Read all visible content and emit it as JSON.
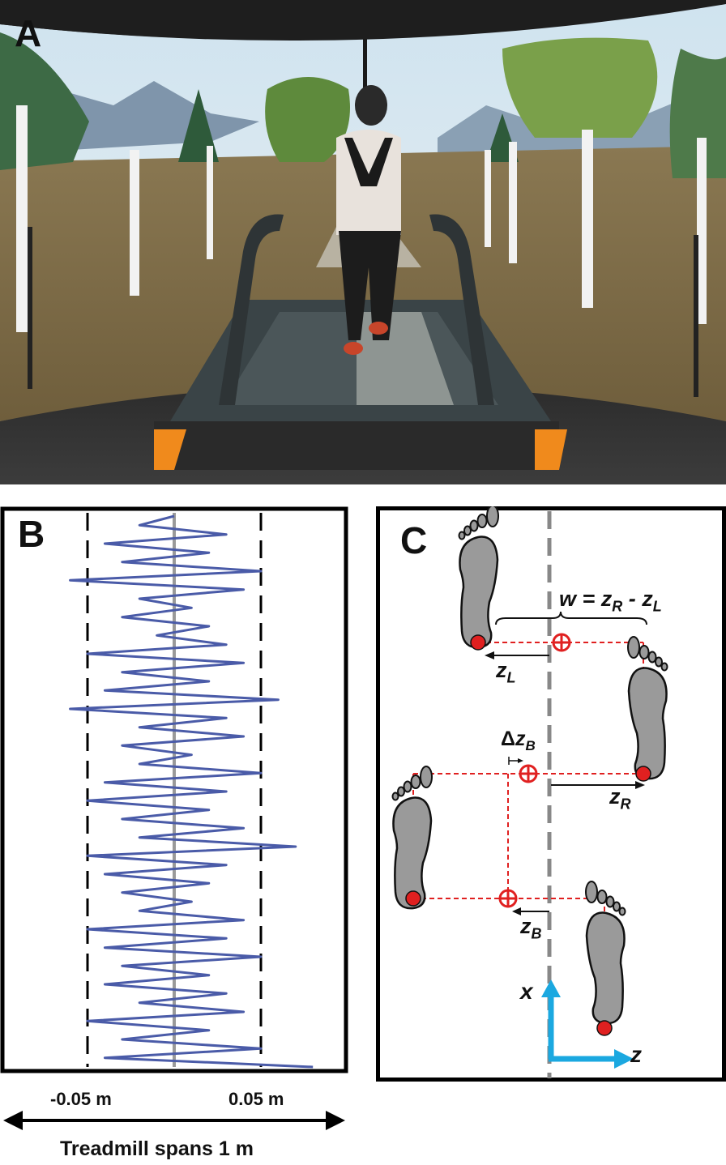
{
  "panels": {
    "a": {
      "label": "A"
    },
    "b": {
      "label": "B"
    },
    "c": {
      "label": "C"
    }
  },
  "panel_b": {
    "left_tick": "-0.05 m",
    "right_tick": "0.05 m",
    "span_label": "Treadmill spans 1 m"
  },
  "panel_c": {
    "width_eq_w": "w = z",
    "width_eq_sub_r": "R",
    "width_eq_mid": " - z",
    "width_eq_sub_l": "L",
    "zl_main": "z",
    "zl_sub": "L",
    "zr_main": "z",
    "zr_sub": "R",
    "dzb_delta": "Δ",
    "dzb_main": "z",
    "dzb_sub": "B",
    "zb_main": "z",
    "zb_sub": "B",
    "axis_x": "x",
    "axis_z": "z"
  },
  "colors": {
    "trace": "#4a5ba8",
    "marker": "#e02020",
    "path": "#e02020",
    "axes": "#1ba8e0",
    "footprint": "#9a9a9a"
  },
  "chart_data": {
    "type": "line",
    "orientation": "vertical",
    "x_range": [
      -0.1,
      0.1
    ],
    "x_unit": "m",
    "reference_lines": [
      -0.05,
      0.05
    ],
    "series": [
      {
        "values": [
          0.0,
          -0.02,
          0.03,
          -0.04,
          0.02,
          -0.03,
          0.05,
          -0.06,
          0.04,
          -0.02,
          0.01,
          -0.03,
          0.02,
          -0.01,
          0.03,
          -0.05,
          0.04,
          -0.03,
          0.02,
          -0.04,
          0.06,
          -0.06,
          0.03,
          -0.02,
          0.04,
          -0.03,
          0.01,
          -0.02,
          0.05,
          -0.04,
          0.03,
          -0.05,
          0.02,
          -0.03,
          0.04,
          -0.02,
          0.07,
          -0.05,
          0.03,
          -0.04,
          0.02,
          -0.03,
          0.01,
          -0.02,
          0.04,
          -0.05,
          0.03,
          -0.04,
          0.05,
          -0.03,
          0.02,
          -0.04,
          0.03,
          -0.02,
          0.04,
          -0.05,
          0.02,
          -0.03,
          0.05,
          -0.04,
          0.08
        ]
      }
    ]
  }
}
